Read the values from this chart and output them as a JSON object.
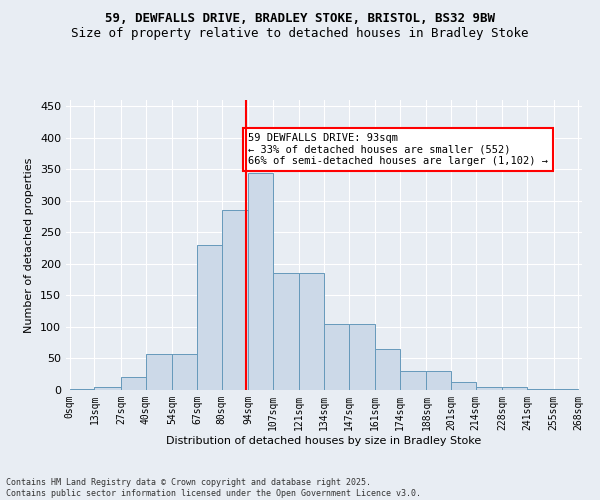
{
  "title_line1": "59, DEWFALLS DRIVE, BRADLEY STOKE, BRISTOL, BS32 9BW",
  "title_line2": "Size of property relative to detached houses in Bradley Stoke",
  "xlabel": "Distribution of detached houses by size in Bradley Stoke",
  "ylabel": "Number of detached properties",
  "annotation_line1": "59 DEWFALLS DRIVE: 93sqm",
  "annotation_line2": "← 33% of detached houses are smaller (552)",
  "annotation_line3": "66% of semi-detached houses are larger (1,102) →",
  "footer_line1": "Contains HM Land Registry data © Crown copyright and database right 2025.",
  "footer_line2": "Contains public sector information licensed under the Open Government Licence v3.0.",
  "property_size": 93,
  "bar_left_edges": [
    0,
    13,
    27,
    40,
    54,
    67,
    80,
    94,
    107,
    121,
    134,
    147,
    161,
    174,
    188,
    201,
    214,
    228,
    241,
    255
  ],
  "bar_heights": [
    1,
    5,
    20,
    57,
    57,
    230,
    285,
    345,
    185,
    185,
    105,
    105,
    65,
    30,
    30,
    12,
    5,
    5,
    2,
    1
  ],
  "bin_widths": [
    13,
    14,
    13,
    14,
    13,
    13,
    14,
    13,
    14,
    13,
    13,
    14,
    13,
    14,
    13,
    13,
    14,
    13,
    14,
    13
  ],
  "bar_color": "#ccd9e8",
  "bar_edge_color": "#6699bb",
  "vline_color": "red",
  "vline_x": 93,
  "ylim": [
    0,
    460
  ],
  "xlim": [
    -2,
    270
  ],
  "yticks": [
    0,
    50,
    100,
    150,
    200,
    250,
    300,
    350,
    400,
    450
  ],
  "xtick_labels": [
    "0sqm",
    "13sqm",
    "27sqm",
    "40sqm",
    "54sqm",
    "67sqm",
    "80sqm",
    "94sqm",
    "107sqm",
    "121sqm",
    "134sqm",
    "147sqm",
    "161sqm",
    "174sqm",
    "188sqm",
    "201sqm",
    "214sqm",
    "228sqm",
    "241sqm",
    "255sqm",
    "268sqm"
  ],
  "xtick_positions": [
    0,
    13,
    27,
    40,
    54,
    67,
    80,
    94,
    107,
    121,
    134,
    147,
    161,
    174,
    188,
    201,
    214,
    228,
    241,
    255,
    268
  ],
  "background_color": "#e8edf3",
  "plot_background_color": "#e8edf3",
  "grid_color": "#ffffff",
  "annotation_box_facecolor": "#ffffff",
  "annotation_box_edgecolor": "red",
  "title_fontsize": 9,
  "subtitle_fontsize": 9,
  "tick_label_fontsize": 7,
  "axis_label_fontsize": 8,
  "annotation_fontsize": 7.5,
  "footer_fontsize": 6
}
